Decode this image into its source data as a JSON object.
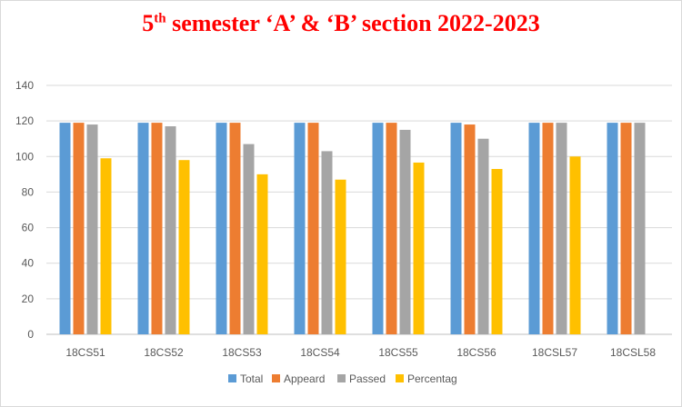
{
  "chart_data": {
    "type": "bar",
    "title": {
      "num": "5",
      "sup": "th",
      "rest": " semester ‘A’ & ‘B’ section 2022-2023"
    },
    "categories": [
      "18CS51",
      "18CS52",
      "18CS53",
      "18CS54",
      "18CS55",
      "18CS56",
      "18CSL57",
      "18CSL58"
    ],
    "series": [
      {
        "name": "Total",
        "color": "#5b9bd5",
        "values": [
          119,
          119,
          119,
          119,
          119,
          119,
          119,
          119
        ]
      },
      {
        "name": "Appeard",
        "color": "#ed7d31",
        "values": [
          119,
          119,
          119,
          119,
          119,
          118,
          119,
          119
        ]
      },
      {
        "name": "Passed",
        "color": "#a5a5a5",
        "values": [
          118,
          117,
          107,
          103,
          115,
          110,
          119,
          119
        ]
      },
      {
        "name": "Percentag",
        "color": "#ffc000",
        "values": [
          99,
          98,
          90,
          87,
          96.6,
          93,
          100,
          null
        ]
      }
    ],
    "ylim": [
      0,
      140
    ],
    "yticks": [
      0,
      20,
      40,
      60,
      80,
      100,
      120,
      140
    ],
    "grid": true,
    "legend": "bottom"
  }
}
